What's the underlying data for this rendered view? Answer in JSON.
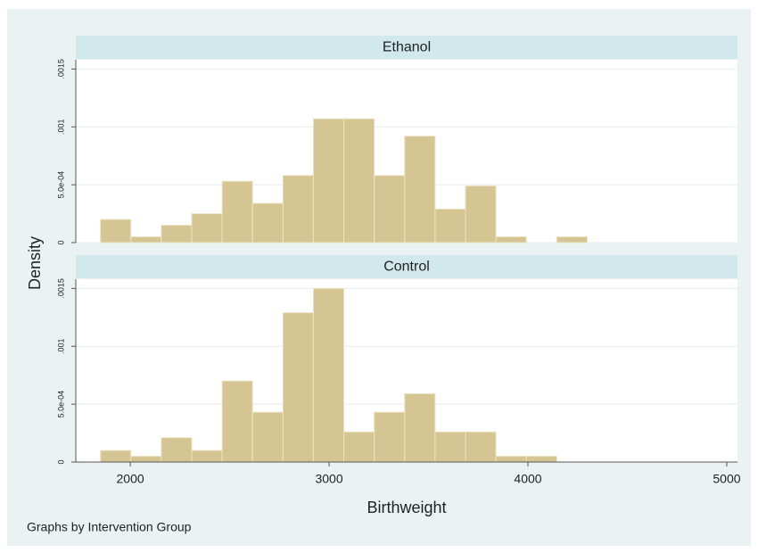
{
  "ylabel": "Density",
  "xlabel": "Birthweight",
  "note": "Graphs by Intervention Group",
  "chart_data": [
    {
      "type": "histogram",
      "title": "Ethanol",
      "color": "#d5c592",
      "bins": [
        1850,
        2003,
        2156,
        2309,
        2462,
        2615,
        2768,
        2921,
        3074,
        3227,
        3380,
        3533,
        3686,
        3839,
        3992,
        4145,
        4298
      ],
      "values": [
        0.0002,
        5e-05,
        0.00015,
        0.00025,
        0.00053,
        0.00034,
        0.00058,
        0.00107,
        0.00107,
        0.00058,
        0.00092,
        0.00029,
        0.00049,
        5e-05,
        0,
        5e-05
      ],
      "xlim": [
        1726,
        5054
      ],
      "ylim": [
        0,
        0.00158
      ],
      "yticks": [
        0,
        {
          "value": 0.0005,
          "label": "5.0e-04"
        },
        {
          "value": 0.001,
          "label": ".001"
        },
        {
          "value": 0.0015,
          "label": ".0015"
        }
      ],
      "grid": true
    },
    {
      "type": "histogram",
      "title": "Control",
      "color": "#d5c592",
      "bins": [
        1850,
        2003,
        2156,
        2309,
        2462,
        2615,
        2768,
        2921,
        3074,
        3227,
        3380,
        3533,
        3686,
        3839,
        3992,
        4145
      ],
      "values": [
        0.0001,
        5e-05,
        0.00021,
        0.0001,
        0.0007,
        0.00043,
        0.00129,
        0.0015,
        0.00026,
        0.00043,
        0.00059,
        0.00026,
        0.00026,
        5e-05,
        5e-05
      ],
      "xlim": [
        1726,
        5054
      ],
      "ylim": [
        0,
        0.00158
      ],
      "xticks": [
        2000,
        3000,
        4000,
        5000
      ],
      "yticks": [
        0,
        {
          "value": 0.0005,
          "label": "5.0e-04"
        },
        {
          "value": 0.001,
          "label": ".001"
        },
        {
          "value": 0.0015,
          "label": ".0015"
        }
      ],
      "grid": true
    }
  ]
}
